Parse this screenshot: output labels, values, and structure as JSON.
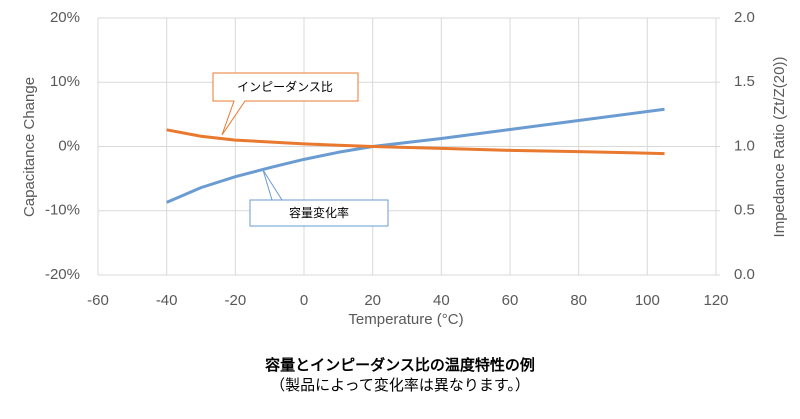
{
  "chart_data": {
    "type": "line",
    "x_label": "Temperature (°C)",
    "y_label": "Capacitance Change",
    "y2_label": "Impedance Ratio (Zt/Z(20))",
    "x": [
      -40,
      -30,
      -20,
      -10,
      0,
      10,
      20,
      40,
      60,
      80,
      105
    ],
    "series": [
      {
        "name": "容量変化率",
        "color": "#6a9bd1",
        "values": [
          -8.7,
          -6.4,
          -4.7,
          -3.3,
          -2.0,
          -0.9,
          0,
          1.25,
          2.65,
          4.05,
          5.8
        ]
      },
      {
        "name": "インピーダンス比",
        "color": "#e8792f",
        "axis": "y2",
        "values": [
          1.13,
          1.08,
          1.05,
          1.035,
          1.02,
          1.01,
          1.0,
          0.985,
          0.97,
          0.96,
          0.945
        ]
      }
    ],
    "xlim": [
      -60,
      120
    ],
    "xticks": [
      -60,
      -40,
      -20,
      0,
      20,
      40,
      60,
      80,
      100,
      120
    ],
    "ylim": [
      -20,
      20
    ],
    "yticks": [
      {
        "value": -20,
        "label": "-20%"
      },
      {
        "value": -10,
        "label": "-10%"
      },
      {
        "value": 0,
        "label": "0%"
      },
      {
        "value": 10,
        "label": "10%"
      },
      {
        "value": 20,
        "label": "20%"
      }
    ],
    "y2lim": [
      0,
      2
    ],
    "y2ticks": [
      {
        "value": 0,
        "label": "0.0"
      },
      {
        "value": 0.5,
        "label": "0.5"
      },
      {
        "value": 1,
        "label": "1.0"
      },
      {
        "value": 1.5,
        "label": "1.5"
      },
      {
        "value": 2,
        "label": "2.0"
      }
    ],
    "grid": true,
    "caption": [
      "容量とインピーダンス比の温度特性の例",
      "（製品によって変化率は異なります。）"
    ]
  }
}
